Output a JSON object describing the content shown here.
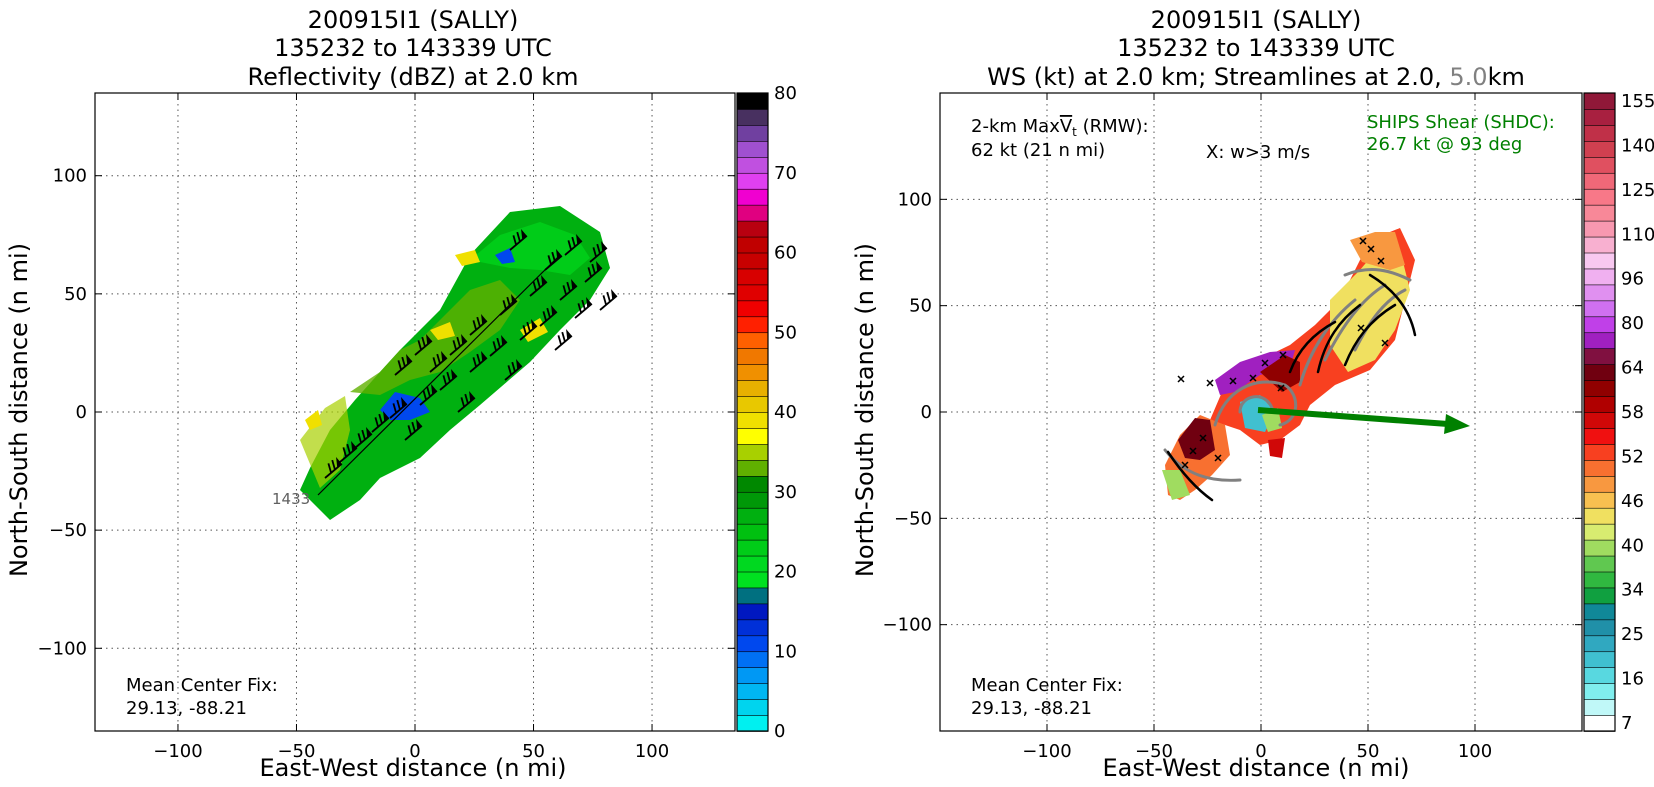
{
  "chart_data": [
    {
      "type": "heatmap",
      "title_lines": [
        "200915I1 (SALLY)",
        "135232 to 143339 UTC",
        "Reflectivity (dBZ) at 2.0 km"
      ],
      "xlabel": "East-West distance (n mi)",
      "ylabel": "North-South distance (n mi)",
      "xlim": [
        -135,
        135
      ],
      "ylim": [
        -135,
        135
      ],
      "xticks": [
        -100,
        -50,
        0,
        50,
        100
      ],
      "yticks": [
        -100,
        -50,
        0,
        50,
        100
      ],
      "grid": true,
      "annotation_lines": [
        "Mean Center Fix:",
        "29.13, -88.21"
      ],
      "track_label": "1433",
      "colorbar": {
        "ticks": [
          0,
          10,
          20,
          30,
          40,
          50,
          60,
          70,
          80
        ],
        "colors": [
          "#00f0f0",
          "#00d4ee",
          "#00b6f2",
          "#0098f4",
          "#0070f4",
          "#0048ee",
          "#0030d8",
          "#0018c0",
          "#007080",
          "#00e020",
          "#00d820",
          "#00cc18",
          "#00c010",
          "#00b010",
          "#009808",
          "#008800",
          "#60b000",
          "#a8d000",
          "#ffff00",
          "#f0e000",
          "#e8c800",
          "#e8b000",
          "#f09000",
          "#f07800",
          "#ff6000",
          "#ff2000",
          "#f00000",
          "#e00000",
          "#d80000",
          "#c80000",
          "#c00000",
          "#b80010",
          "#e00080",
          "#f000d0",
          "#e040f0",
          "#c050e0",
          "#a050d0",
          "#7040a0",
          "#483060",
          "#000000"
        ]
      },
      "wind_barbs": "black flagged barbs along band"
    },
    {
      "type": "heatmap",
      "title_lines": [
        "200915I1 (SALLY)",
        "135232 to 143339 UTC",
        "WS (kt) at 2.0 km; Streamlines at 2.0, ",
        "5.0",
        "km"
      ],
      "xlabel": "East-West distance (n mi)",
      "ylabel": "North-South distance (n mi)",
      "xlim": [
        -150,
        150
      ],
      "ylim": [
        -150,
        150
      ],
      "xticks": [
        -100,
        -50,
        0,
        50,
        100
      ],
      "yticks": [
        -100,
        -50,
        0,
        50,
        100
      ],
      "grid": true,
      "vmax_label": "2-km Max",
      "vmax_symbol": "V",
      "vmax_sub": "t",
      "vmax_rmw": " (RMW):",
      "vmax_value": "62 kt (21 n mi)",
      "w_note": "X: w>3 m/s",
      "shear_lines": [
        "SHIPS Shear (SHDC):",
        "26.7 kt @ 93 deg"
      ],
      "shear_vector": {
        "magnitude_kt": 26.7,
        "direction_deg": 93
      },
      "annotation_lines": [
        "Mean Center Fix:",
        "29.13, -88.21"
      ],
      "colorbar": {
        "ticks": [
          "7",
          "16",
          "25",
          "34",
          "40",
          "46",
          "52",
          "58",
          "64",
          "80",
          "96",
          "110",
          "125",
          "140",
          "155"
        ],
        "colors": [
          "#ffffff",
          "#c0f8f8",
          "#80eeee",
          "#58d8e0",
          "#40c0d0",
          "#30a8c0",
          "#2090a8",
          "#108898",
          "#10a040",
          "#30b840",
          "#60c850",
          "#a0dc60",
          "#d8ec70",
          "#f0e060",
          "#f8c050",
          "#f89840",
          "#f87030",
          "#f84020",
          "#f01010",
          "#d00808",
          "#b00000",
          "#900000",
          "#700010",
          "#801040",
          "#a020c0",
          "#c040e8",
          "#d070f0",
          "#e090f0",
          "#f0b0f0",
          "#f8c8f0",
          "#f8b0d0",
          "#f898b0",
          "#f88898",
          "#f87888",
          "#f06878",
          "#e05060",
          "#d04050",
          "#c03048",
          "#a82040",
          "#901838"
        ]
      },
      "colors": {
        "shear": "#008000",
        "streamline_2km": "#000000",
        "streamline_5km": "#808080"
      }
    }
  ]
}
